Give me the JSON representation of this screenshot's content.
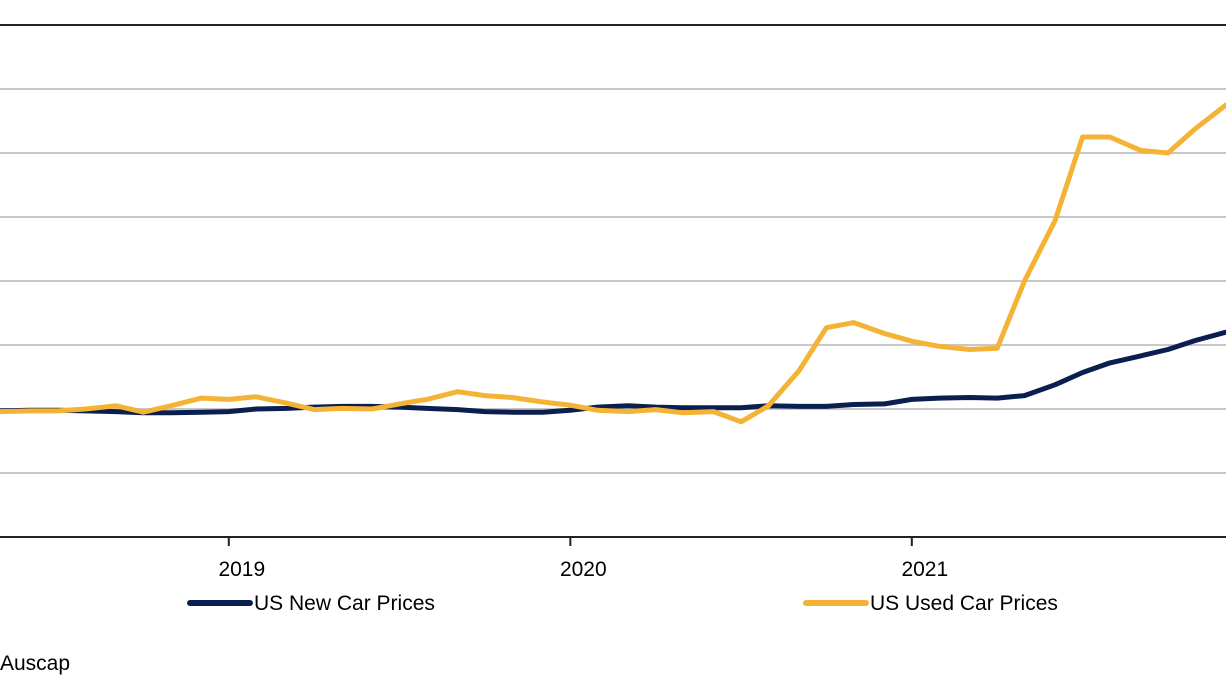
{
  "chart_data": {
    "type": "line",
    "title": "",
    "xlabel": "",
    "ylabel": "",
    "x_tick_labels": [
      {
        "label": "2019",
        "x": 2019.0
      },
      {
        "label": "2020",
        "x": 2020.0
      },
      {
        "label": "2021",
        "x": 2021.0
      }
    ],
    "xlim": [
      2018.33,
      2021.92
    ],
    "ylim": [
      0,
      8
    ],
    "y_gridlines": [
      1,
      2,
      3,
      4,
      5,
      6,
      7
    ],
    "grid": "horizontal",
    "legend_position": "bottom",
    "x": [
      2018.33,
      2018.42,
      2018.5,
      2018.58,
      2018.67,
      2018.75,
      2018.83,
      2018.92,
      2019.0,
      2019.08,
      2019.17,
      2019.25,
      2019.33,
      2019.42,
      2019.5,
      2019.58,
      2019.67,
      2019.75,
      2019.83,
      2019.92,
      2020.0,
      2020.08,
      2020.17,
      2020.25,
      2020.33,
      2020.42,
      2020.5,
      2020.58,
      2020.67,
      2020.75,
      2020.83,
      2020.92,
      2021.0,
      2021.08,
      2021.17,
      2021.25,
      2021.33,
      2021.42,
      2021.5,
      2021.58,
      2021.67,
      2021.75,
      2021.83,
      2021.92
    ],
    "series": [
      {
        "name": "US New Car Prices",
        "color": "#0a1f4f",
        "values": [
          1.97,
          1.98,
          1.98,
          1.97,
          1.96,
          1.94,
          1.94,
          1.95,
          1.96,
          2.0,
          2.01,
          2.03,
          2.04,
          2.04,
          2.03,
          2.01,
          1.99,
          1.96,
          1.95,
          1.95,
          1.98,
          2.03,
          2.05,
          2.03,
          2.02,
          2.02,
          2.02,
          2.05,
          2.04,
          2.04,
          2.07,
          2.08,
          2.15,
          2.17,
          2.18,
          2.17,
          2.21,
          2.38,
          2.57,
          2.72,
          2.83,
          2.93,
          3.07,
          3.2
        ]
      },
      {
        "name": "US Used Car Prices",
        "color": "#f5b335",
        "values": [
          1.96,
          1.97,
          1.97,
          2.0,
          2.05,
          1.95,
          2.05,
          2.17,
          2.15,
          2.19,
          2.09,
          1.99,
          2.01,
          2.0,
          2.08,
          2.15,
          2.27,
          2.21,
          2.18,
          2.11,
          2.06,
          1.98,
          1.96,
          1.99,
          1.94,
          1.96,
          1.8,
          2.05,
          2.6,
          3.27,
          3.35,
          3.18,
          3.06,
          2.98,
          2.93,
          2.95,
          4.0,
          4.95,
          6.25,
          6.25,
          6.04,
          6.0,
          6.38,
          6.75
        ]
      }
    ]
  },
  "source_text": "Auscap"
}
